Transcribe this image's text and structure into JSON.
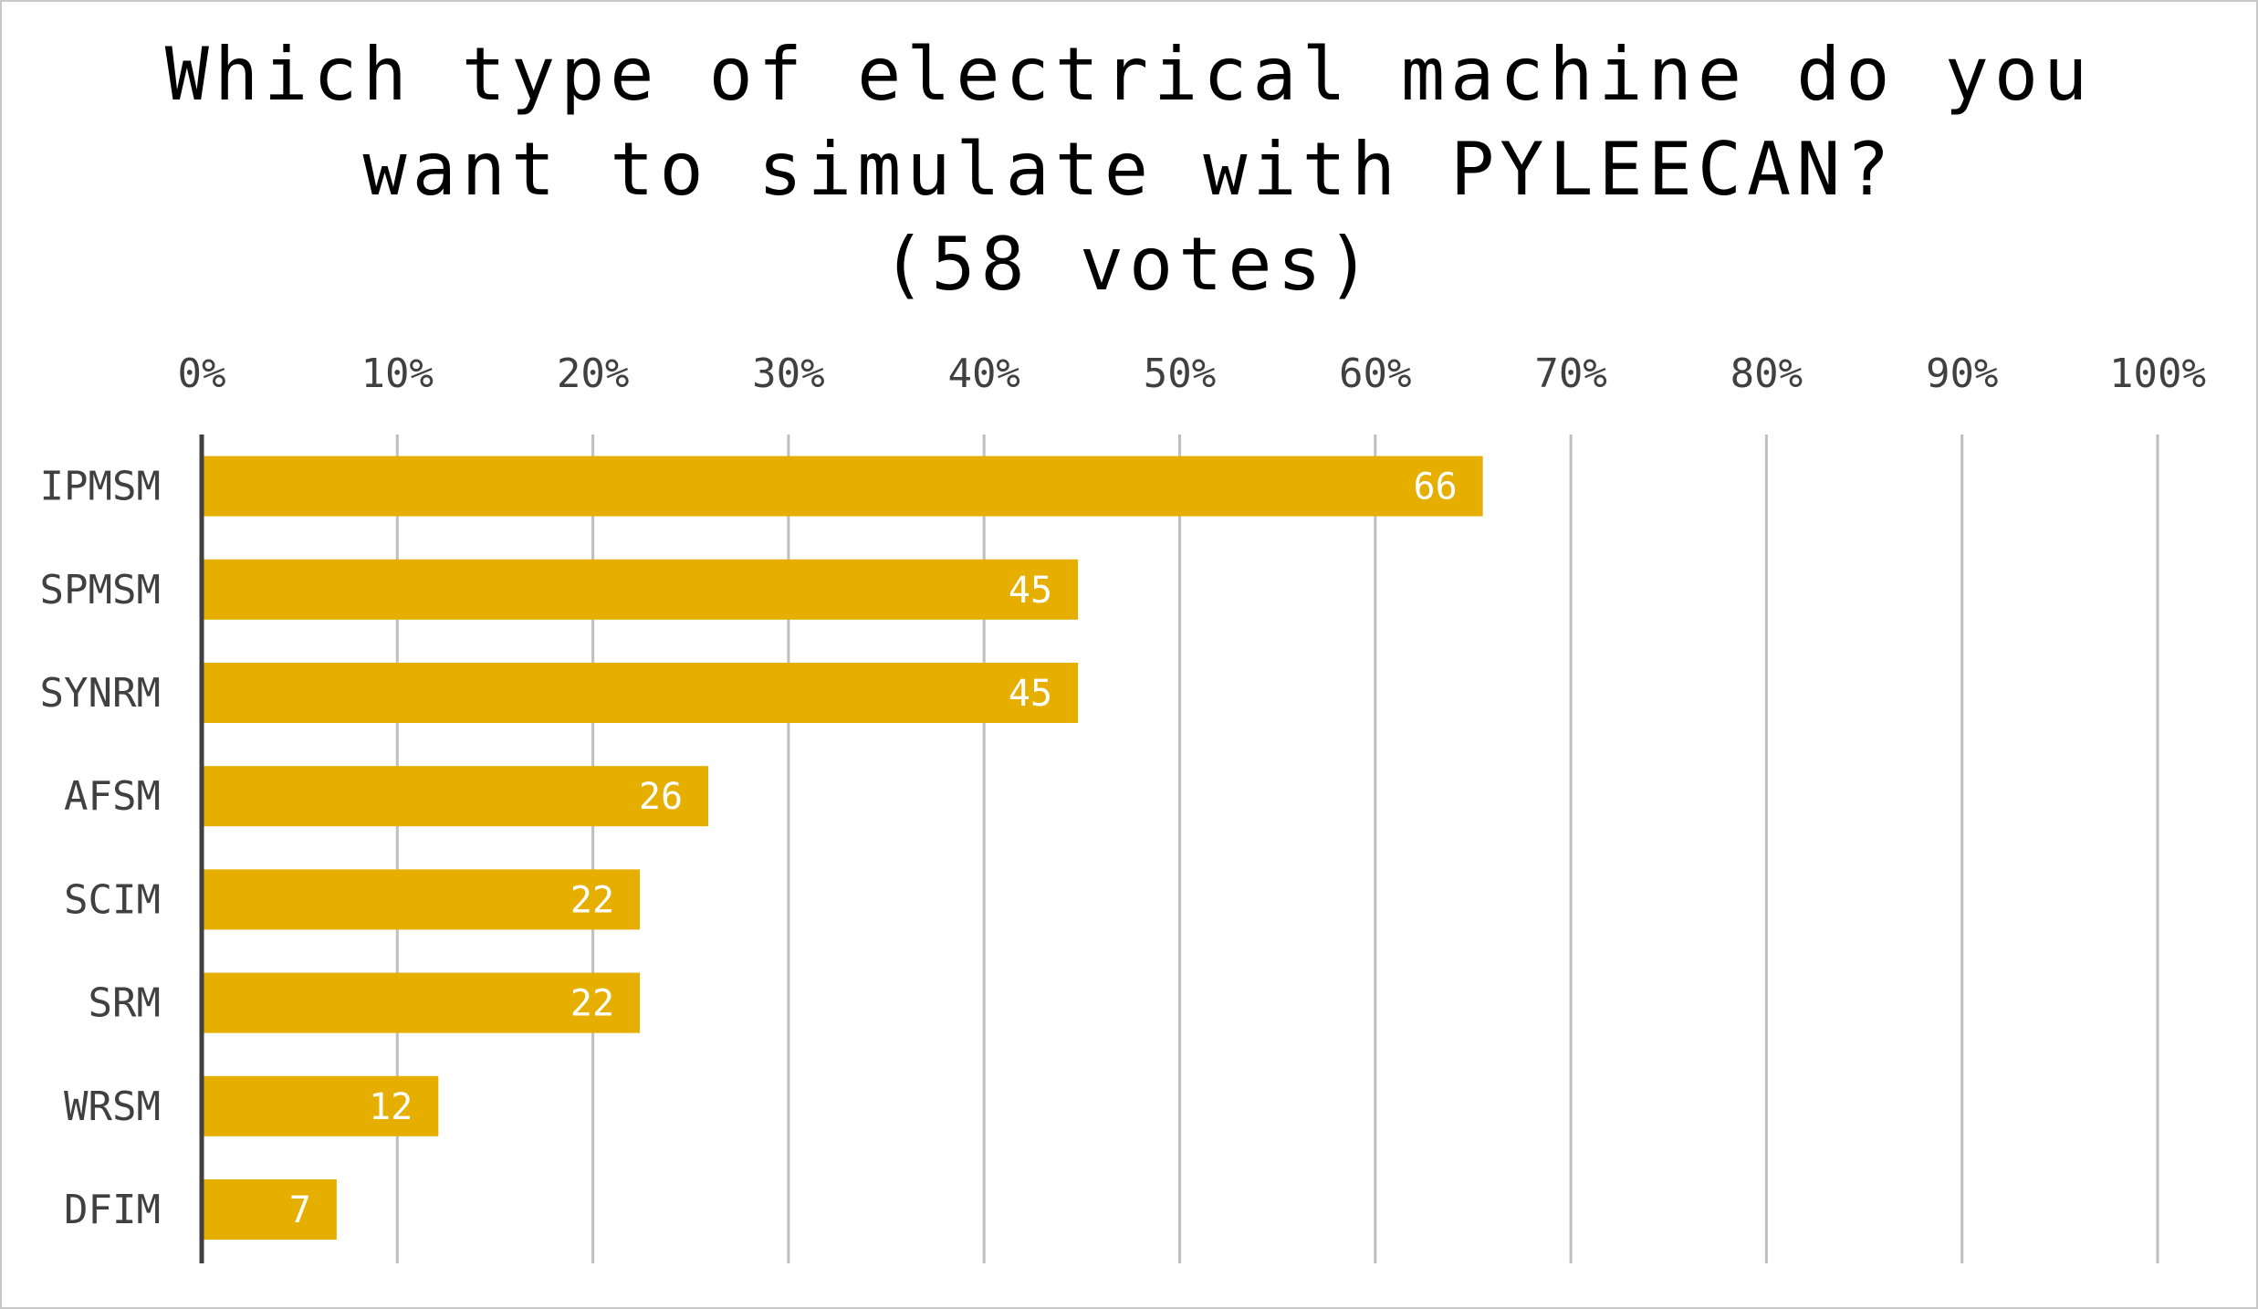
{
  "chart_data": {
    "type": "bar",
    "orientation": "horizontal",
    "title_lines": [
      "Which type of electrical machine do you",
      "want to simulate with PYLEECAN?",
      "(58 votes)"
    ],
    "categories": [
      "IPMSM",
      "SPMSM",
      "SYNRM",
      "AFSM",
      "SCIM",
      "SRM",
      "WRSM",
      "DFIM"
    ],
    "values": [
      65.5,
      44.8,
      44.8,
      25.9,
      22.4,
      22.4,
      12.1,
      6.9
    ],
    "data_labels": [
      "66",
      "45",
      "45",
      "26",
      "22",
      "22",
      "12",
      "7"
    ],
    "xlim": [
      0,
      100
    ],
    "x_ticks": [
      0,
      10,
      20,
      30,
      40,
      50,
      60,
      70,
      80,
      90,
      100
    ],
    "x_tick_labels": [
      "0%",
      "10%",
      "20%",
      "30%",
      "40%",
      "50%",
      "60%",
      "70%",
      "80%",
      "90%",
      "100%"
    ],
    "x_axis_position": "top",
    "grid": true,
    "legend": "none",
    "bar_color": "#E6AF00",
    "grid_color": "#bfbfbf",
    "axis_color": "#404040"
  }
}
